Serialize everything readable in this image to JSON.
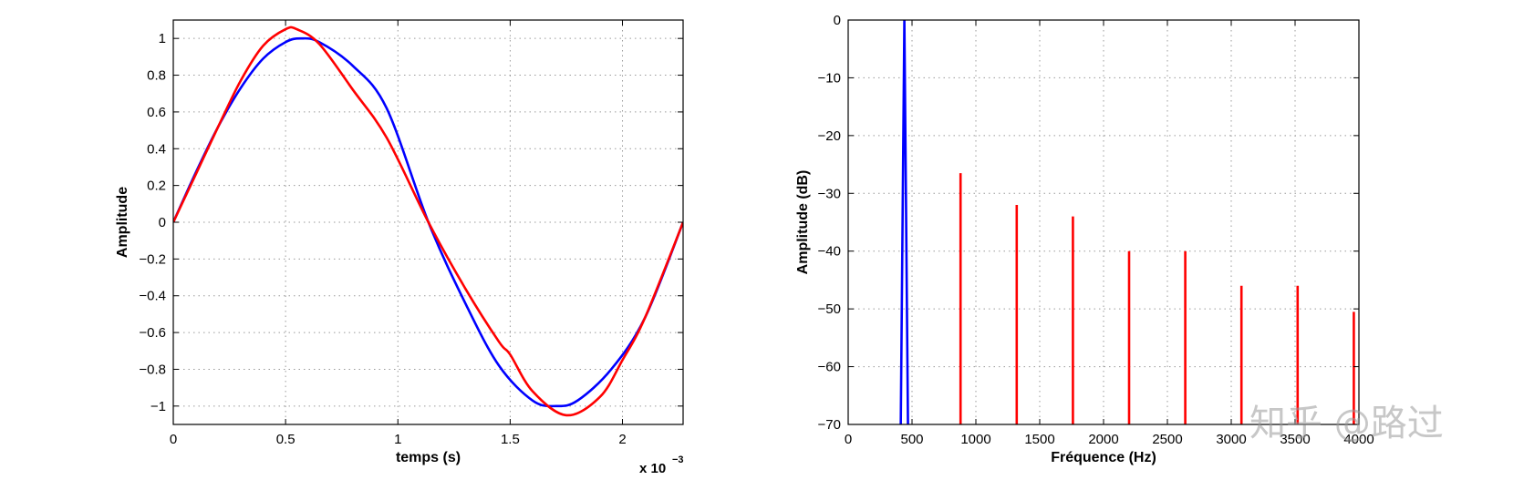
{
  "chart_data": [
    {
      "type": "line",
      "xlabel": "temps (s)",
      "ylabel": "Amplitude",
      "x_multiplier_label": "x 10",
      "x_multiplier_exponent": "−3",
      "xlim": [
        0,
        2.27
      ],
      "ylim": [
        -1.1,
        1.1
      ],
      "grid": true,
      "xticks": [
        0,
        0.5,
        1,
        1.5,
        2
      ],
      "xtick_labels": [
        "0",
        "0.5",
        "1",
        "1.5",
        "2"
      ],
      "yticks": [
        1,
        0.8,
        0.6,
        0.4,
        0.2,
        0,
        -0.2,
        -0.4,
        -0.6,
        -0.8,
        -1
      ],
      "ytick_labels": [
        "1",
        "0.8",
        "0.6",
        "0.4",
        "0.2",
        "0",
        "−0.2",
        "−0.4",
        "−0.6",
        "−0.8",
        "−1"
      ],
      "series": [
        {
          "color": "#0000ff",
          "x": [
            0,
            0.1,
            0.2,
            0.3,
            0.4,
            0.5,
            0.568,
            0.65,
            0.8,
            0.95,
            1.136,
            1.3,
            1.45,
            1.6,
            1.705,
            1.8,
            1.95,
            2.1,
            2.27
          ],
          "y": [
            0,
            0.27,
            0.52,
            0.73,
            0.89,
            0.98,
            1.0,
            0.98,
            0.85,
            0.62,
            0,
            -0.44,
            -0.78,
            -0.97,
            -1.0,
            -0.97,
            -0.8,
            -0.52,
            0
          ]
        },
        {
          "color": "#ff0000",
          "x": [
            0,
            0.1,
            0.2,
            0.3,
            0.4,
            0.5,
            0.55,
            0.65,
            0.8,
            0.95,
            1.136,
            1.3,
            1.45,
            1.5,
            1.6,
            1.75,
            1.9,
            2.0,
            2.1,
            2.27
          ],
          "y": [
            0,
            0.26,
            0.52,
            0.77,
            0.96,
            1.05,
            1.05,
            0.97,
            0.72,
            0.46,
            0,
            -0.36,
            -0.65,
            -0.72,
            -0.92,
            -1.05,
            -0.95,
            -0.75,
            -0.52,
            0
          ]
        }
      ]
    },
    {
      "type": "line",
      "xlabel": "Fréquence (Hz)",
      "ylabel": "Amplitude (dB)",
      "xlim": [
        0,
        4000
      ],
      "ylim": [
        -70,
        0
      ],
      "grid": true,
      "xticks": [
        0,
        500,
        1000,
        1500,
        2000,
        2500,
        3000,
        3500,
        4000
      ],
      "xtick_labels": [
        "0",
        "500",
        "1000",
        "1500",
        "2000",
        "2500",
        "3000",
        "3500",
        "4000"
      ],
      "yticks": [
        0,
        -10,
        -20,
        -30,
        -40,
        -50,
        -60,
        -70
      ],
      "ytick_labels": [
        "0",
        "−10",
        "−20",
        "−30",
        "−40",
        "−50",
        "−60",
        "−70"
      ],
      "series": [
        {
          "color": "#0000ff",
          "peaks": [
            {
              "f": 440,
              "db": 0
            }
          ]
        },
        {
          "color": "#ff0000",
          "peaks": [
            {
              "f": 880,
              "db": -26.5
            },
            {
              "f": 1320,
              "db": -32
            },
            {
              "f": 1760,
              "db": -34
            },
            {
              "f": 2200,
              "db": -40
            },
            {
              "f": 2640,
              "db": -40
            },
            {
              "f": 3080,
              "db": -46
            },
            {
              "f": 3520,
              "db": -46
            },
            {
              "f": 3960,
              "db": -50.5
            }
          ]
        }
      ]
    }
  ],
  "watermark": {
    "text": "知乎 @路过"
  }
}
